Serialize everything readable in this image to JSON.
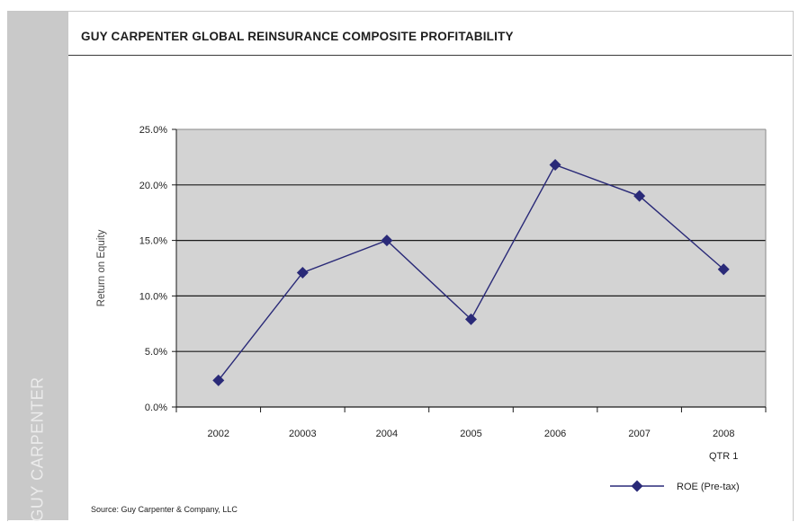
{
  "brand": "GUY CARPENTER",
  "chart_data": {
    "type": "line",
    "title": "GUY CARPENTER GLOBAL REINSURANCE COMPOSITE PROFITABILITY",
    "xlabel": "",
    "ylabel": "Return on Equity",
    "categories": [
      "2002",
      "20003",
      "2004",
      "2005",
      "2006",
      "2007",
      "2008"
    ],
    "category_sublabels": [
      "",
      "",
      "",
      "",
      "",
      "",
      "QTR 1"
    ],
    "series": [
      {
        "name": "ROE (Pre-tax)",
        "values": [
          2.4,
          12.1,
          15.0,
          7.9,
          21.8,
          19.0,
          12.4
        ],
        "color": "#2a2a78",
        "marker": "diamond"
      }
    ],
    "ylim": [
      0,
      25
    ],
    "yticks": [
      0,
      5,
      10,
      15,
      20,
      25
    ],
    "ytick_labels": [
      "0.0%",
      "5.0%",
      "10.0%",
      "15.0%",
      "20.0%",
      "25.0%"
    ],
    "grid": true,
    "plot_background": "#d3d3d3",
    "legend": "bottom-right"
  },
  "source": "Source: Guy Carpenter & Company, LLC"
}
